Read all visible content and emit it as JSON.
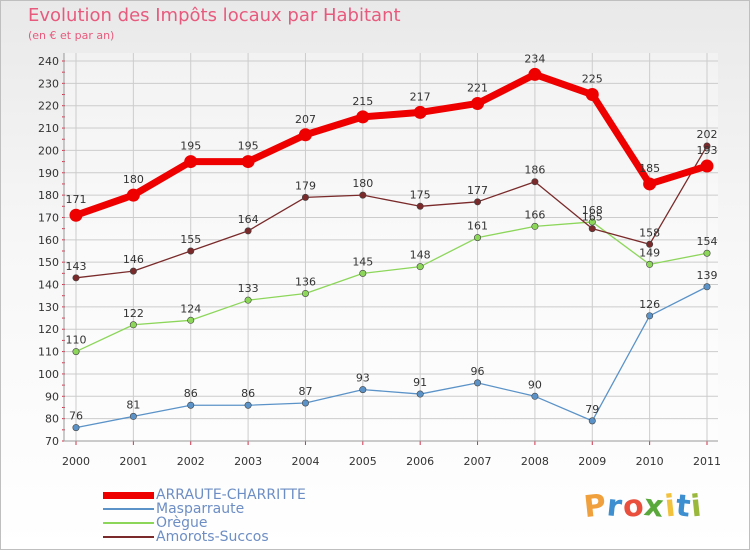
{
  "title": "Evolution des Impôts locaux par Habitant",
  "subtitle": "(en € et par an)",
  "brand": {
    "letters": [
      "P",
      "r",
      "o",
      "x",
      "i",
      "t",
      "i"
    ],
    "colors": [
      "#f0a03c",
      "#3d8fd0",
      "#e94f3c",
      "#5aa83c",
      "#f3c23c",
      "#3d8fd0",
      "#9ab83c"
    ]
  },
  "chart_data": {
    "type": "line",
    "x": [
      "2000",
      "2001",
      "2002",
      "2003",
      "2004",
      "2005",
      "2006",
      "2007",
      "2008",
      "2009",
      "2010",
      "2011"
    ],
    "y_ticks": [
      "70",
      "80",
      "90",
      "100",
      "110",
      "120",
      "130",
      "140",
      "150",
      "160",
      "170",
      "180",
      "190",
      "200",
      "210",
      "220",
      "230",
      "240"
    ],
    "ylim": [
      70,
      240
    ],
    "grid": true,
    "legend_position": "bottom-left",
    "series": [
      {
        "name": "ARRAUTE-CHARRITTE",
        "color": "#ee0000",
        "highlight": true,
        "values": [
          171,
          180,
          195,
          195,
          207,
          215,
          217,
          221,
          234,
          225,
          185,
          193
        ],
        "labels": [
          "171",
          "180",
          "195",
          "195",
          "207",
          "215",
          "217",
          "221",
          "234",
          "225",
          "185",
          "193"
        ]
      },
      {
        "name": "Masparraute",
        "color": "#5b93c8",
        "values": [
          76,
          81,
          86,
          86,
          87,
          93,
          91,
          96,
          90,
          79,
          126,
          139
        ],
        "labels": [
          "76",
          "81",
          "86",
          "86",
          "87",
          "93",
          "91",
          "96",
          "90",
          "79",
          "126",
          "139"
        ]
      },
      {
        "name": "Orègue",
        "color": "#8cd65a",
        "values": [
          110,
          122,
          124,
          133,
          136,
          145,
          148,
          161,
          166,
          168,
          149,
          154
        ],
        "labels": [
          "110",
          "122",
          "124",
          "133",
          "136",
          "145",
          "148",
          "161",
          "166",
          "168",
          "149",
          "154"
        ]
      },
      {
        "name": "Amorots-Succos",
        "color": "#7a2a2a",
        "values": [
          143,
          146,
          155,
          164,
          179,
          180,
          175,
          177,
          186,
          165,
          158,
          202
        ],
        "labels": [
          "143",
          "146",
          "155",
          "164",
          "179",
          "180",
          "175",
          "177",
          "186",
          "165",
          "158",
          "202"
        ]
      }
    ]
  }
}
